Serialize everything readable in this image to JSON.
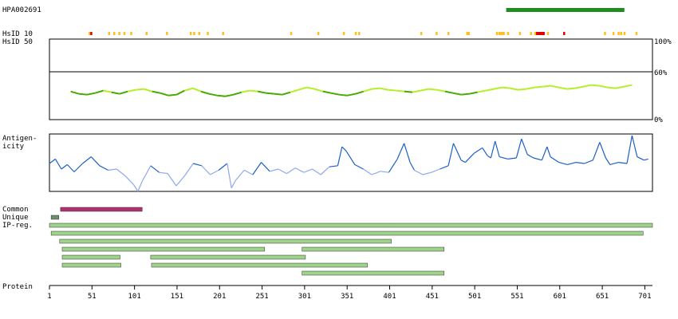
{
  "header": {
    "antibody_id": "HPA002691"
  },
  "labels": {
    "hsid10": "HsID 10",
    "hsid50": "HsID 50",
    "antigenicity": [
      "Antigen-",
      "icity"
    ],
    "common": "Common",
    "unique": "Unique",
    "ipreg": "IP-reg.",
    "protein": "Protein"
  },
  "colors": {
    "antibody_bar": "#228b22",
    "hsid_yellow": "#ffbf1f",
    "hsid_red": "#e00000",
    "identity_dark": "#44aa00",
    "identity_light": "#b4f02a",
    "antigen_dark": "#1d5fc7",
    "antigen_light": "#8fa8ea",
    "common_bar": "#b0306f",
    "unique_bar": "#6f8f6a",
    "ipreg_bar": "#9ed38a"
  },
  "chart_data": {
    "type": "protein-feature-plot",
    "sequence_length": 710,
    "antibody_region": [
      538,
      677
    ],
    "x_ticks": [
      1,
      51,
      101,
      151,
      201,
      251,
      301,
      351,
      401,
      451,
      501,
      551,
      601,
      651,
      701
    ],
    "identity_axis": {
      "ticks": [
        "100%",
        "60%",
        "0%"
      ],
      "values": [
        100,
        60,
        0
      ]
    },
    "hsid10_yellow": [
      47,
      70,
      76,
      82,
      88,
      96,
      114,
      138,
      166,
      170,
      176,
      186,
      204,
      284,
      316,
      346,
      360,
      364,
      437,
      455,
      469,
      491,
      493,
      526,
      529,
      531,
      533,
      534,
      539,
      553,
      566,
      571,
      586,
      653,
      663,
      669,
      672,
      676,
      690
    ],
    "hsid10_red": [
      49,
      573,
      575,
      577,
      579,
      581,
      605
    ],
    "identity_profile": {
      "start": 26,
      "end": 686,
      "values": [
        35,
        32,
        31,
        33,
        36,
        34,
        32,
        35,
        37,
        38,
        35,
        33,
        30,
        31,
        36,
        39,
        35,
        32,
        30,
        29,
        31,
        34,
        36,
        35,
        33,
        32,
        31,
        34,
        37,
        40,
        38,
        35,
        33,
        31,
        30,
        32,
        35,
        38,
        39,
        37,
        36,
        35,
        34,
        36,
        38,
        37,
        35,
        33,
        31,
        32,
        34,
        36,
        38,
        40,
        39,
        37,
        38,
        40,
        41,
        42,
        40,
        38,
        39,
        41,
        43,
        42,
        40,
        39,
        41,
        43
      ]
    },
    "antigenicity_profile": {
      "points": [
        [
          1,
          50
        ],
        [
          8,
          58
        ],
        [
          15,
          40
        ],
        [
          22,
          48
        ],
        [
          30,
          35
        ],
        [
          40,
          50
        ],
        [
          50,
          62
        ],
        [
          60,
          46
        ],
        [
          70,
          38
        ],
        [
          80,
          40
        ],
        [
          90,
          28
        ],
        [
          100,
          12
        ],
        [
          105,
          0
        ],
        [
          110,
          18
        ],
        [
          120,
          46
        ],
        [
          130,
          34
        ],
        [
          140,
          32
        ],
        [
          150,
          10
        ],
        [
          160,
          28
        ],
        [
          170,
          50
        ],
        [
          180,
          46
        ],
        [
          190,
          30
        ],
        [
          200,
          38
        ],
        [
          210,
          50
        ],
        [
          215,
          6
        ],
        [
          220,
          20
        ],
        [
          230,
          38
        ],
        [
          240,
          30
        ],
        [
          250,
          52
        ],
        [
          260,
          36
        ],
        [
          270,
          40
        ],
        [
          280,
          32
        ],
        [
          290,
          42
        ],
        [
          300,
          34
        ],
        [
          310,
          40
        ],
        [
          320,
          30
        ],
        [
          330,
          44
        ],
        [
          340,
          46
        ],
        [
          345,
          80
        ],
        [
          350,
          72
        ],
        [
          360,
          48
        ],
        [
          370,
          40
        ],
        [
          380,
          30
        ],
        [
          390,
          36
        ],
        [
          400,
          34
        ],
        [
          410,
          58
        ],
        [
          418,
          86
        ],
        [
          425,
          52
        ],
        [
          430,
          38
        ],
        [
          440,
          30
        ],
        [
          450,
          34
        ],
        [
          460,
          40
        ],
        [
          470,
          46
        ],
        [
          476,
          86
        ],
        [
          485,
          56
        ],
        [
          490,
          52
        ],
        [
          500,
          68
        ],
        [
          510,
          78
        ],
        [
          516,
          64
        ],
        [
          520,
          60
        ],
        [
          525,
          90
        ],
        [
          530,
          62
        ],
        [
          540,
          58
        ],
        [
          550,
          60
        ],
        [
          556,
          94
        ],
        [
          563,
          66
        ],
        [
          570,
          60
        ],
        [
          580,
          56
        ],
        [
          586,
          80
        ],
        [
          590,
          62
        ],
        [
          600,
          52
        ],
        [
          610,
          48
        ],
        [
          620,
          52
        ],
        [
          630,
          50
        ],
        [
          640,
          56
        ],
        [
          648,
          88
        ],
        [
          655,
          60
        ],
        [
          660,
          48
        ],
        [
          670,
          52
        ],
        [
          680,
          50
        ],
        [
          686,
          100
        ],
        [
          692,
          62
        ],
        [
          700,
          56
        ],
        [
          705,
          58
        ]
      ]
    },
    "epitope_tracks": {
      "common": [
        [
          14,
          110
        ]
      ],
      "unique": [
        [
          3,
          12
        ]
      ],
      "ipreg": [
        [
          1,
          710
        ],
        [
          3,
          699
        ],
        [
          13,
          403
        ],
        [
          16,
          254
        ],
        [
          298,
          465
        ],
        [
          16,
          84
        ],
        [
          120,
          302
        ],
        [
          16,
          85
        ],
        [
          121,
          375
        ],
        [
          298,
          465
        ]
      ]
    }
  }
}
